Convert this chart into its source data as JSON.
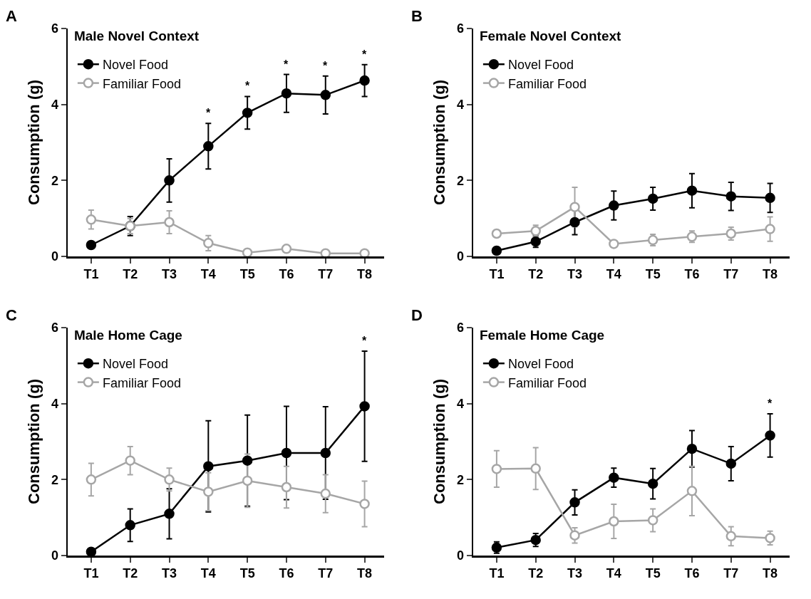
{
  "chart_data": [
    {
      "type": "line",
      "title": "Male Novel Context",
      "ylabel": "Consumption (g)",
      "categories": [
        "T1",
        "T2",
        "T3",
        "T4",
        "T5",
        "T6",
        "T7",
        "T8"
      ],
      "ylim": [
        0,
        6
      ],
      "yticks": [
        0,
        2,
        4,
        6
      ],
      "grid": false,
      "legend": "top left",
      "marker": "circle",
      "line_style": "solid",
      "series": [
        {
          "name": "Novel Food",
          "color": "#000000",
          "values": [
            0.3,
            0.8,
            2.0,
            2.9,
            3.78,
            4.29,
            4.25,
            4.63
          ],
          "errors": [
            null,
            0.25,
            0.57,
            0.6,
            0.43,
            0.5,
            0.5,
            0.42
          ]
        },
        {
          "name": "Familiar Food",
          "color": "#a6a6a6",
          "values": [
            0.97,
            0.8,
            0.9,
            0.35,
            0.1,
            0.2,
            0.08,
            0.08
          ],
          "errors": [
            0.25,
            0.2,
            0.3,
            0.2,
            null,
            null,
            null,
            null
          ]
        }
      ],
      "annotations": [
        "A",
        {
          "text": "*",
          "x": "T4",
          "y": 3.5
        },
        {
          "text": "*",
          "x": "T5",
          "y": 4.21
        },
        {
          "text": "*",
          "x": "T6",
          "y": 4.79
        },
        {
          "text": "*",
          "x": "T7",
          "y": 4.75
        },
        {
          "text": "*",
          "x": "T8",
          "y": 5.05
        }
      ]
    },
    {
      "type": "line",
      "title": "Female Novel Context",
      "ylabel": "Consumption (g)",
      "categories": [
        "T1",
        "T2",
        "T3",
        "T4",
        "T5",
        "T6",
        "T7",
        "T8"
      ],
      "ylim": [
        0,
        6
      ],
      "yticks": [
        0,
        2,
        4,
        6
      ],
      "grid": false,
      "legend": "top left",
      "marker": "circle",
      "line_style": "solid",
      "series": [
        {
          "name": "Novel Food",
          "color": "#000000",
          "values": [
            0.15,
            0.39,
            0.9,
            1.34,
            1.52,
            1.73,
            1.58,
            1.54
          ],
          "errors": [
            null,
            0.15,
            0.33,
            0.38,
            0.3,
            0.45,
            0.37,
            0.38
          ]
        },
        {
          "name": "Familiar Food",
          "color": "#a6a6a6",
          "values": [
            0.6,
            0.67,
            1.3,
            0.33,
            0.43,
            0.52,
            0.6,
            0.72
          ],
          "errors": [
            null,
            0.15,
            0.52,
            null,
            0.15,
            0.15,
            0.17,
            0.32
          ]
        }
      ],
      "annotations": [
        "B"
      ]
    },
    {
      "type": "line",
      "title": "Male Home Cage",
      "ylabel": "Consumption (g)",
      "categories": [
        "T1",
        "T2",
        "T3",
        "T4",
        "T5",
        "T6",
        "T7",
        "T8"
      ],
      "ylim": [
        0,
        6
      ],
      "yticks": [
        0,
        2,
        4,
        6
      ],
      "grid": false,
      "legend": "top left",
      "marker": "circle",
      "line_style": "solid",
      "series": [
        {
          "name": "Novel Food",
          "color": "#000000",
          "values": [
            0.1,
            0.8,
            1.1,
            2.35,
            2.5,
            2.7,
            2.7,
            3.93
          ],
          "errors": [
            0.03,
            0.43,
            0.66,
            1.2,
            1.2,
            1.23,
            1.22,
            1.45
          ]
        },
        {
          "name": "Familiar Food",
          "color": "#a6a6a6",
          "values": [
            2.0,
            2.5,
            2.0,
            1.68,
            1.97,
            1.8,
            1.63,
            1.36
          ],
          "errors": [
            0.43,
            0.37,
            0.3,
            0.5,
            0.7,
            0.55,
            0.5,
            0.6
          ]
        }
      ],
      "annotations": [
        "C",
        {
          "text": "*",
          "x": "T8",
          "y": 5.38
        }
      ]
    },
    {
      "type": "line",
      "title": "Female Home Cage",
      "ylabel": "Consumption (g)",
      "categories": [
        "T1",
        "T2",
        "T3",
        "T4",
        "T5",
        "T6",
        "T7",
        "T8"
      ],
      "ylim": [
        0,
        6
      ],
      "yticks": [
        0,
        2,
        4,
        6
      ],
      "grid": false,
      "legend": "top left",
      "marker": "circle",
      "line_style": "solid",
      "series": [
        {
          "name": "Novel Food",
          "color": "#000000",
          "values": [
            0.21,
            0.41,
            1.4,
            2.05,
            1.89,
            2.81,
            2.42,
            3.16
          ],
          "errors": [
            0.15,
            0.17,
            0.33,
            0.25,
            0.4,
            0.48,
            0.45,
            0.57
          ]
        },
        {
          "name": "Familiar Food",
          "color": "#a6a6a6",
          "values": [
            2.28,
            2.29,
            0.53,
            0.9,
            0.93,
            1.7,
            0.51,
            0.46
          ],
          "errors": [
            0.48,
            0.55,
            0.2,
            0.45,
            0.3,
            0.65,
            0.25,
            0.18
          ]
        }
      ],
      "annotations": [
        "D",
        {
          "text": "*",
          "x": "T8",
          "y": 3.73
        }
      ]
    }
  ]
}
